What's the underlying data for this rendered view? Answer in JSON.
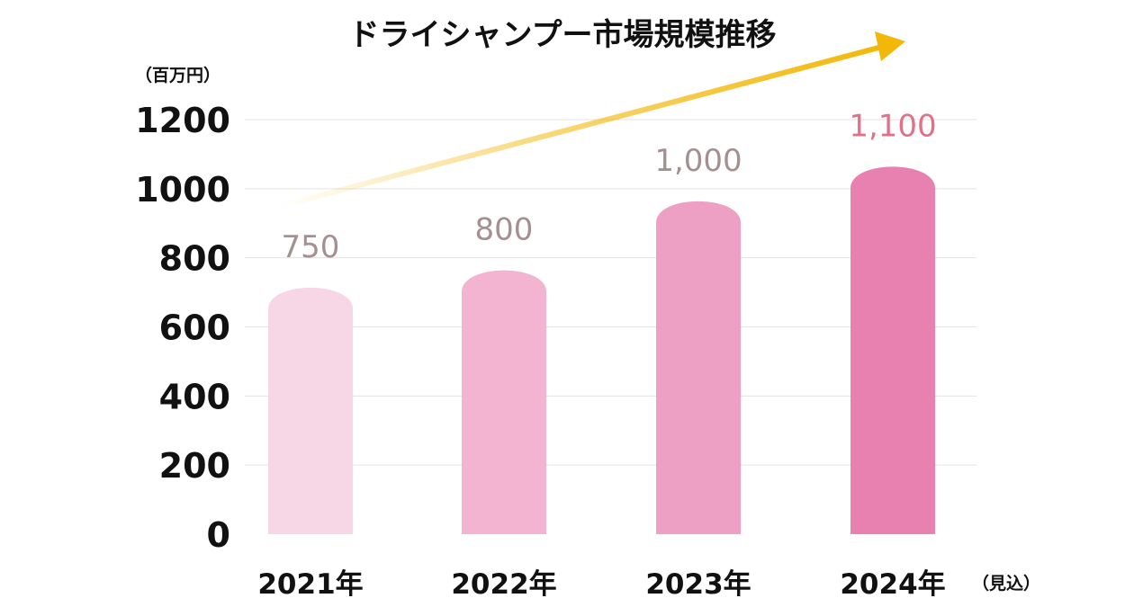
{
  "chart_data": {
    "type": "bar",
    "title": "ドライシャンプー市場規模推移",
    "ylabel": "（百万円）",
    "xlabel": "",
    "ylim": [
      0,
      1200
    ],
    "yticks": [
      0,
      200,
      400,
      600,
      800,
      1000,
      1200
    ],
    "grid": true,
    "categories": [
      "2021年",
      "2022年",
      "2023年",
      "2024年"
    ],
    "values": [
      750,
      800,
      1000,
      1100
    ],
    "data_labels": [
      "750",
      "800",
      "1,000",
      "1,100"
    ],
    "category_notes": [
      "",
      "",
      "",
      "（見込）"
    ],
    "bar_colors": [
      "#f7d6e5",
      "#f2b4d0",
      "#ee9fc4",
      "#e981b0"
    ],
    "label_colors": [
      "#a49090",
      "#a49090",
      "#a49090",
      "#e37089"
    ],
    "trend_arrow_color": "#f2b707"
  }
}
